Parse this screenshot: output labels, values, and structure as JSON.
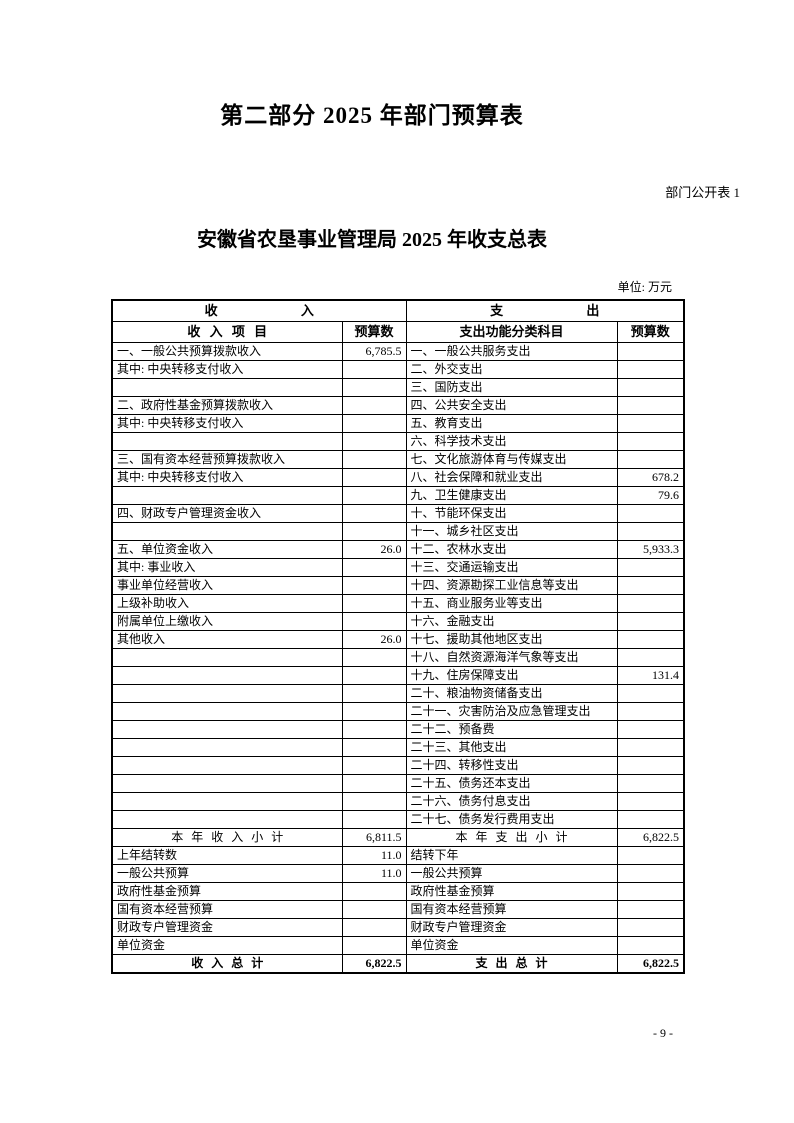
{
  "document": {
    "part_title": "第二部分 2025 年部门预算表",
    "table_label": "部门公开表 1",
    "table_title": "安徽省农垦事业管理局 2025 年收支总表",
    "unit_note": "单位: 万元",
    "page_number": "- 9 -"
  },
  "table": {
    "income_header": "收 入",
    "expense_header": "支 出",
    "columns": {
      "income_item": "收 入 项 目",
      "income_budget": "预算数",
      "expense_item": "支出功能分类科目",
      "expense_budget": "预算数"
    },
    "rows": [
      {
        "i": "一、一般公共预算拨款收入",
        "il": 0,
        "iv": "6,785.5",
        "e": "一、一般公共服务支出",
        "ev": ""
      },
      {
        "i": "其中: 中央转移支付收入",
        "il": 2,
        "iv": "",
        "e": "二、外交支出",
        "ev": ""
      },
      {
        "i": "",
        "iv": "",
        "e": "三、国防支出",
        "ev": ""
      },
      {
        "i": "二、政府性基金预算拨款收入",
        "il": 0,
        "iv": "",
        "e": "四、公共安全支出",
        "ev": ""
      },
      {
        "i": "其中: 中央转移支付收入",
        "il": 2,
        "iv": "",
        "e": "五、教育支出",
        "ev": ""
      },
      {
        "i": "",
        "iv": "",
        "e": "六、科学技术支出",
        "ev": ""
      },
      {
        "i": "三、国有资本经营预算拨款收入",
        "il": 0,
        "iv": "",
        "e": "七、文化旅游体育与传媒支出",
        "ev": ""
      },
      {
        "i": "其中: 中央转移支付收入",
        "il": 2,
        "iv": "",
        "e": "八、社会保障和就业支出",
        "ev": "678.2"
      },
      {
        "i": "",
        "iv": "",
        "e": "九、卫生健康支出",
        "ev": "79.6"
      },
      {
        "i": "四、财政专户管理资金收入",
        "il": 0,
        "iv": "",
        "e": "十、节能环保支出",
        "ev": ""
      },
      {
        "i": "",
        "iv": "",
        "e": "十一、城乡社区支出",
        "ev": ""
      },
      {
        "i": "五、单位资金收入",
        "il": 0,
        "iv": "26.0",
        "e": "十二、农林水支出",
        "ev": "5,933.3"
      },
      {
        "i": "其中: 事业收入",
        "il": 2,
        "iv": "",
        "e": "十三、交通运输支出",
        "ev": ""
      },
      {
        "i": "事业单位经营收入",
        "il": 3,
        "iv": "",
        "e": "十四、资源勘探工业信息等支出",
        "ev": ""
      },
      {
        "i": "上级补助收入",
        "il": 3,
        "iv": "",
        "e": "十五、商业服务业等支出",
        "ev": ""
      },
      {
        "i": "附属单位上缴收入",
        "il": 3,
        "iv": "",
        "e": "十六、金融支出",
        "ev": ""
      },
      {
        "i": "其他收入",
        "il": 3,
        "iv": "26.0",
        "e": "十七、援助其他地区支出",
        "ev": ""
      },
      {
        "i": "",
        "iv": "",
        "e": "十八、自然资源海洋气象等支出",
        "ev": ""
      },
      {
        "i": "",
        "iv": "",
        "e": "十九、住房保障支出",
        "ev": "131.4"
      },
      {
        "i": "",
        "iv": "",
        "e": "二十、粮油物资储备支出",
        "ev": ""
      },
      {
        "i": "",
        "iv": "",
        "e": "二十一、灾害防治及应急管理支出",
        "ev": ""
      },
      {
        "i": "",
        "iv": "",
        "e": "二十二、预备费",
        "ev": ""
      },
      {
        "i": "",
        "iv": "",
        "e": "二十三、其他支出",
        "ev": ""
      },
      {
        "i": "",
        "iv": "",
        "e": "二十四、转移性支出",
        "ev": ""
      },
      {
        "i": "",
        "iv": "",
        "e": "二十五、债务还本支出",
        "ev": ""
      },
      {
        "i": "",
        "iv": "",
        "e": "二十六、债务付息支出",
        "ev": ""
      },
      {
        "i": "",
        "iv": "",
        "e": "二十七、债务发行费用支出",
        "ev": ""
      },
      {
        "i": "本 年 收 入 小 计",
        "ic": true,
        "iv": "6,811.5",
        "e": "本 年 支 出 小 计",
        "ec": true,
        "ev": "6,822.5"
      },
      {
        "i": "上年结转数",
        "il": 0,
        "iv": "11.0",
        "e": "结转下年",
        "ev": ""
      },
      {
        "i": "一般公共预算",
        "il": 1,
        "iv": "11.0",
        "e": "一般公共预算",
        "el": 1,
        "ev": ""
      },
      {
        "i": "政府性基金预算",
        "il": 1,
        "iv": "",
        "e": "政府性基金预算",
        "el": 1,
        "ev": ""
      },
      {
        "i": "国有资本经营预算",
        "il": 1,
        "iv": "",
        "e": "国有资本经营预算",
        "el": 1,
        "ev": ""
      },
      {
        "i": "财政专户管理资金",
        "il": 1,
        "iv": "",
        "e": "财政专户管理资金",
        "el": 1,
        "ev": ""
      },
      {
        "i": "单位资金",
        "il": 1,
        "iv": "",
        "e": "单位资金",
        "el": 1,
        "ev": ""
      },
      {
        "i": "收 入 总 计",
        "ic": true,
        "b": true,
        "iv": "6,822.5",
        "e": "支 出 总 计",
        "ec": true,
        "ev": "6,822.5"
      }
    ]
  }
}
